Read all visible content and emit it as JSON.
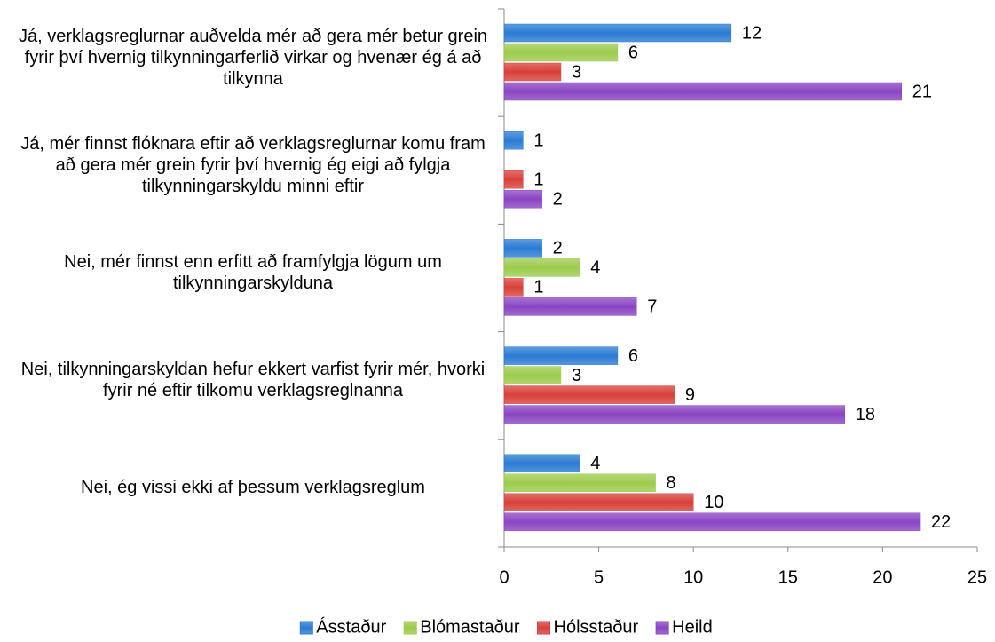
{
  "chart_data": {
    "type": "bar",
    "orientation": "horizontal",
    "categories": [
      "Já, verklagsreglurnar auðvelda mér að gera mér betur grein fyrir því hvernig tilkynningarferlið virkar og hvenær ég á að tilkynna",
      "Já, mér finnst flóknara eftir að verklagsreglurnar komu fram að gera mér grein fyrir því hvernig ég eigi að fylgja tilkynningarskyldu minni eftir",
      "Nei, mér finnst enn erfitt að framfylgja lögum um tilkynningarskylduna",
      "Nei, tilkynningarskyldan hefur ekkert varfist fyrir mér, hvorki fyrir né eftir tilkomu verklagsreglnanna",
      "Nei, ég vissi ekki af þessum verklagsreglum"
    ],
    "series": [
      {
        "name": "Ásstaður",
        "color": "#2a7bd3",
        "values": [
          12,
          1,
          2,
          6,
          4
        ]
      },
      {
        "name": "Blómastaður",
        "color": "#9ccb4c",
        "values": [
          6,
          null,
          4,
          3,
          8
        ]
      },
      {
        "name": "Hólsstaður",
        "color": "#d8403a",
        "values": [
          3,
          1,
          1,
          9,
          10
        ]
      },
      {
        "name": "Heild",
        "color": "#8a45c2",
        "values": [
          21,
          2,
          7,
          18,
          22
        ]
      }
    ],
    "xlim": [
      0,
      25
    ],
    "xticks": [
      0,
      5,
      10,
      15,
      20,
      25
    ],
    "legend": "bottom"
  }
}
